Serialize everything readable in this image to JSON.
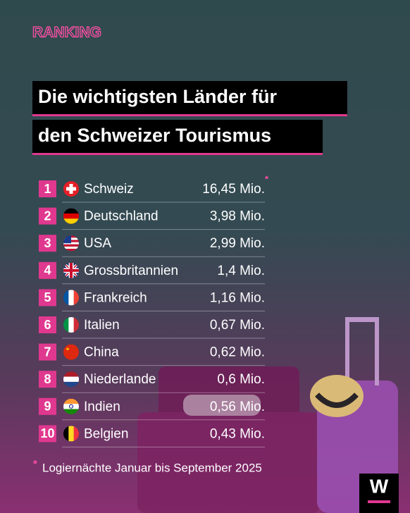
{
  "header": {
    "label": "RANKING",
    "title_lines": [
      "Die wichtigsten Länder für",
      "den Schweizer Tourismus"
    ]
  },
  "table": {
    "rows": [
      {
        "rank": 1,
        "country": "Schweiz",
        "value": "16,45 Mio."
      },
      {
        "rank": 2,
        "country": "Deutschland",
        "value": "3,98 Mio."
      },
      {
        "rank": 3,
        "country": "USA",
        "value": "2,99 Mio."
      },
      {
        "rank": 4,
        "country": "Grossbritannien",
        "value": "1,4 Mio."
      },
      {
        "rank": 5,
        "country": "Frankreich",
        "value": "1,16 Mio."
      },
      {
        "rank": 6,
        "country": "Italien",
        "value": "0,67 Mio."
      },
      {
        "rank": 7,
        "country": "China",
        "value": "0,62 Mio."
      },
      {
        "rank": 8,
        "country": "Niederlande",
        "value": "0,6 Mio."
      },
      {
        "rank": 9,
        "country": "Indien",
        "value": "0,56 Mio."
      },
      {
        "rank": 10,
        "country": "Belgien",
        "value": "0,43 Mio."
      }
    ]
  },
  "footnote": {
    "marker": "*",
    "text": "Logiernächte Januar bis September 2025"
  },
  "logo": {
    "text": "W"
  }
}
